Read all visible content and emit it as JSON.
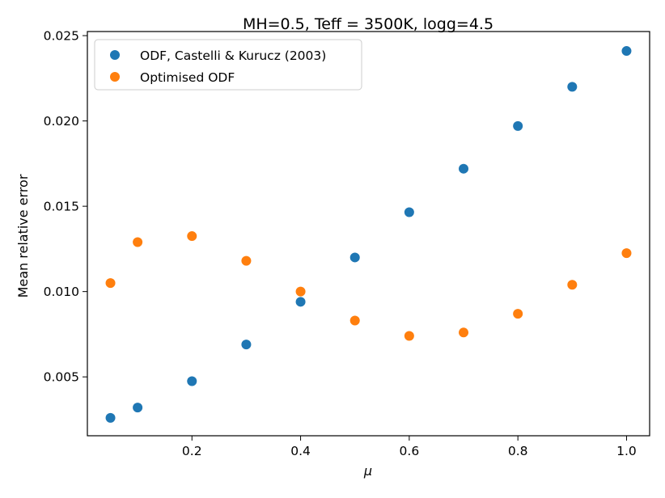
{
  "chart_data": {
    "type": "scatter",
    "title": "MH=0.5, Teff = 3500K, logg=4.5",
    "xlabel": "μ",
    "ylabel": "Mean relative error",
    "xlim": [
      0.0075,
      1.0425
    ],
    "ylim": [
      0.00155,
      0.02524
    ],
    "x_ticks": [
      0.2,
      0.4,
      0.6,
      0.8,
      1.0
    ],
    "x_tick_labels": [
      "0.2",
      "0.4",
      "0.6",
      "0.8",
      "1.0"
    ],
    "y_ticks": [
      0.005,
      0.01,
      0.015,
      0.02,
      0.025
    ],
    "y_tick_labels": [
      "0.005",
      "0.010",
      "0.015",
      "0.020",
      "0.025"
    ],
    "grid": false,
    "legend_position": "top-left",
    "x": [
      0.05,
      0.1,
      0.2,
      0.3,
      0.4,
      0.5,
      0.6,
      0.7,
      0.8,
      0.9,
      1.0
    ],
    "series": [
      {
        "name": "ODF, Castelli & Kurucz (2003)",
        "color": "#1f77b4",
        "values": [
          0.0026,
          0.0032,
          0.00475,
          0.0069,
          0.0094,
          0.012,
          0.01465,
          0.0172,
          0.0197,
          0.022,
          0.0241
        ]
      },
      {
        "name": "Optimised ODF",
        "color": "#ff7f0e",
        "values": [
          0.0105,
          0.0129,
          0.01325,
          0.0118,
          0.01,
          0.0083,
          0.0074,
          0.0076,
          0.0087,
          0.0104,
          0.01225
        ]
      }
    ]
  }
}
